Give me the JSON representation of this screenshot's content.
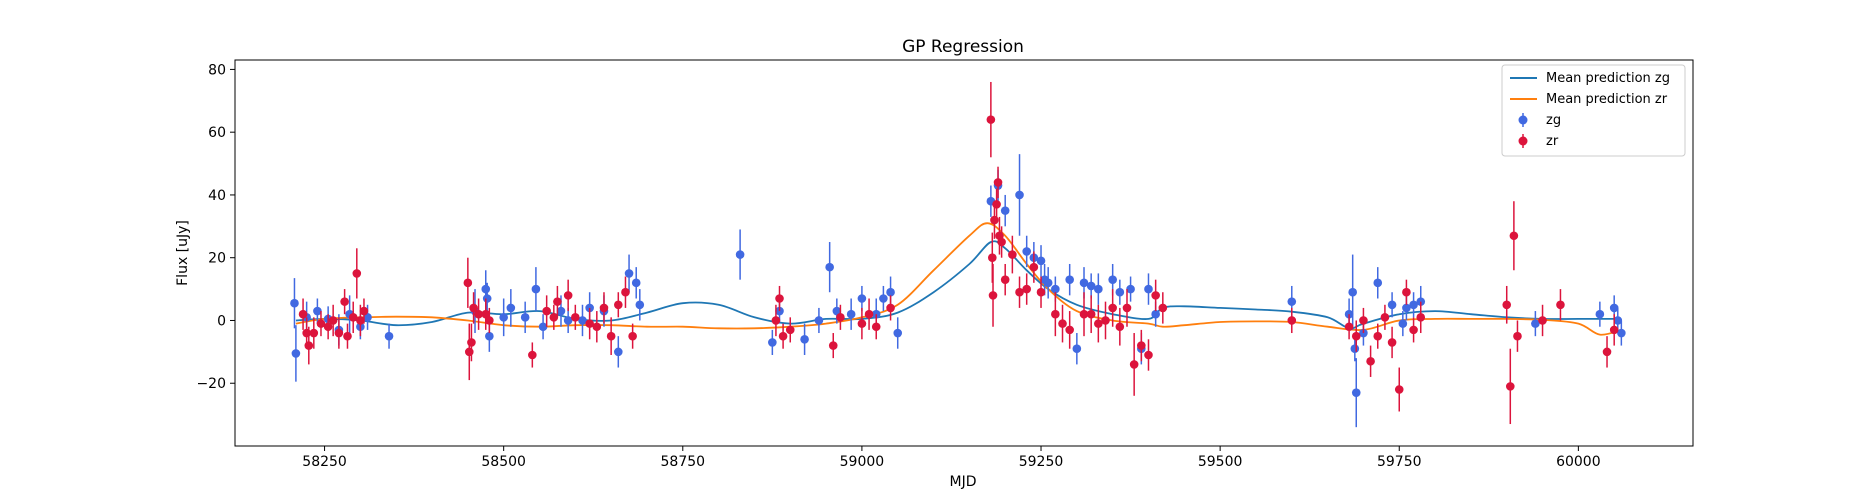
{
  "chart_data": {
    "type": "scatter",
    "title": "GP Regression",
    "xlabel": "MJD",
    "ylabel": "Flux [uJy]",
    "xlim": [
      58125,
      60160
    ],
    "ylim": [
      -40,
      83
    ],
    "xticks": [
      58250,
      58500,
      58750,
      59000,
      59250,
      59500,
      59750,
      60000
    ],
    "yticks": [
      -20,
      0,
      20,
      40,
      60,
      80
    ],
    "grid": false,
    "legend": {
      "placement": "top-right",
      "entries": [
        "Mean prediction zg",
        "Mean prediction zr",
        "zg",
        "zr"
      ]
    },
    "series": [
      {
        "name": "Mean prediction zg",
        "kind": "line",
        "color": "#1f77b4",
        "x": [
          58210,
          58250,
          58300,
          58350,
          58400,
          58450,
          58500,
          58550,
          58600,
          58650,
          58700,
          58750,
          58800,
          58850,
          58900,
          58950,
          59000,
          59050,
          59100,
          59150,
          59180,
          59200,
          59230,
          59260,
          59300,
          59350,
          59400,
          59420,
          59450,
          59500,
          59550,
          59600,
          59650,
          59680,
          59700,
          59750,
          59800,
          59850,
          59900,
          59950,
          60000,
          60040,
          60060
        ],
        "y": [
          0,
          0.5,
          0,
          -1.5,
          -0.5,
          2.5,
          2,
          3,
          0.5,
          0,
          2.5,
          5.5,
          5,
          1,
          -1,
          0.5,
          0.5,
          2.5,
          9,
          18,
          25,
          23,
          16,
          10,
          5,
          2,
          0.5,
          4,
          4.5,
          4,
          3.5,
          2.8,
          1,
          -2.5,
          -1,
          2,
          3,
          2,
          1,
          0.5,
          0.5,
          0.5,
          0.5
        ]
      },
      {
        "name": "Mean prediction zr",
        "kind": "line",
        "color": "#ff7f0e",
        "x": [
          58210,
          58250,
          58300,
          58350,
          58400,
          58450,
          58500,
          58550,
          58600,
          58650,
          58700,
          58750,
          58800,
          58850,
          58900,
          58950,
          59000,
          59050,
          59100,
          59150,
          59175,
          59200,
          59230,
          59260,
          59300,
          59350,
          59400,
          59420,
          59450,
          59500,
          59550,
          59600,
          59650,
          59700,
          59750,
          59800,
          59850,
          59900,
          59950,
          60000,
          60030,
          60060
        ],
        "y": [
          -1,
          0.5,
          1,
          1.2,
          1,
          0,
          -1.5,
          -2,
          -1.5,
          -1.5,
          -2,
          -2,
          -2.5,
          -2.5,
          -2,
          -1,
          1,
          5,
          16,
          27,
          31,
          27,
          18,
          10,
          3,
          0,
          -1,
          -2,
          -1.5,
          -0.5,
          -0.3,
          -0.5,
          -2,
          -3,
          0,
          0.5,
          0.5,
          0.5,
          0.2,
          -1,
          -4.5,
          -3
        ]
      },
      {
        "name": "zg",
        "kind": "errorbar",
        "color": "#4169e1",
        "points": [
          [
            58208,
            5.5,
            8
          ],
          [
            58210,
            -10.5,
            9
          ],
          [
            58225,
            1,
            5
          ],
          [
            58240,
            3,
            4
          ],
          [
            58255,
            0.5,
            4
          ],
          [
            58270,
            -3,
            5
          ],
          [
            58285,
            2,
            6
          ],
          [
            58300,
            -2,
            4
          ],
          [
            58310,
            1,
            4
          ],
          [
            58340,
            -5,
            4
          ],
          [
            58460,
            3,
            7
          ],
          [
            58475,
            10,
            6
          ],
          [
            58477,
            7,
            5
          ],
          [
            58480,
            -5,
            5
          ],
          [
            58500,
            1,
            6
          ],
          [
            58510,
            4,
            6
          ],
          [
            58530,
            1,
            5
          ],
          [
            58545,
            10,
            7
          ],
          [
            58555,
            -2,
            4
          ],
          [
            58580,
            3,
            5
          ],
          [
            58590,
            0,
            4
          ],
          [
            58610,
            0,
            5
          ],
          [
            58620,
            4,
            5
          ],
          [
            58640,
            3,
            5
          ],
          [
            58660,
            -10,
            5
          ],
          [
            58675,
            15,
            6
          ],
          [
            58685,
            12,
            5
          ],
          [
            58690,
            5,
            5
          ],
          [
            58830,
            21,
            8
          ],
          [
            58875,
            -7,
            4
          ],
          [
            58885,
            3,
            4
          ],
          [
            58920,
            -6,
            5
          ],
          [
            58940,
            0,
            4
          ],
          [
            58955,
            17,
            8
          ],
          [
            58965,
            3,
            4
          ],
          [
            58985,
            2,
            5
          ],
          [
            59000,
            7,
            4
          ],
          [
            59020,
            2,
            5
          ],
          [
            59030,
            7,
            4
          ],
          [
            59040,
            9,
            5
          ],
          [
            59050,
            -4,
            5
          ],
          [
            59180,
            38,
            5
          ],
          [
            59190,
            43,
            5
          ],
          [
            59200,
            35,
            5
          ],
          [
            59220,
            40,
            13
          ],
          [
            59230,
            22,
            5
          ],
          [
            59240,
            20,
            5
          ],
          [
            59250,
            19,
            5
          ],
          [
            59255,
            13,
            5
          ],
          [
            59260,
            12,
            5
          ],
          [
            59270,
            10,
            4
          ],
          [
            59290,
            13,
            5
          ],
          [
            59300,
            -9,
            5
          ],
          [
            59310,
            12,
            5
          ],
          [
            59320,
            11,
            4
          ],
          [
            59330,
            10,
            5
          ],
          [
            59350,
            13,
            5
          ],
          [
            59360,
            9,
            4
          ],
          [
            59375,
            10,
            4
          ],
          [
            59390,
            -9,
            5
          ],
          [
            59400,
            10,
            5
          ],
          [
            59410,
            2,
            4
          ],
          [
            59600,
            6,
            5
          ],
          [
            59680,
            2,
            5
          ],
          [
            59685,
            9,
            12
          ],
          [
            59688,
            -9,
            4
          ],
          [
            59690,
            -23,
            11
          ],
          [
            59700,
            -4,
            4
          ],
          [
            59720,
            12,
            5
          ],
          [
            59740,
            5,
            4
          ],
          [
            59755,
            -1,
            4
          ],
          [
            59760,
            4,
            4
          ],
          [
            59770,
            5,
            4
          ],
          [
            59780,
            6,
            5
          ],
          [
            59940,
            -1,
            4
          ],
          [
            60030,
            2,
            4
          ],
          [
            60050,
            4,
            4
          ],
          [
            60055,
            0,
            4
          ],
          [
            60060,
            -4,
            4
          ]
        ]
      },
      {
        "name": "zr",
        "kind": "errorbar",
        "color": "#dc143c",
        "points": [
          [
            58220,
            2,
            5
          ],
          [
            58225,
            -4,
            5
          ],
          [
            58228,
            -8,
            6
          ],
          [
            58235,
            -4,
            5
          ],
          [
            58245,
            -1,
            4
          ],
          [
            58255,
            -2,
            4
          ],
          [
            58262,
            0,
            5
          ],
          [
            58270,
            -4,
            5
          ],
          [
            58278,
            6,
            4
          ],
          [
            58282,
            -5,
            4
          ],
          [
            58290,
            1,
            5
          ],
          [
            58295,
            15,
            8
          ],
          [
            58300,
            0,
            5
          ],
          [
            58305,
            3,
            4
          ],
          [
            58450,
            12,
            8
          ],
          [
            58452,
            -10,
            9
          ],
          [
            58455,
            -7,
            6
          ],
          [
            58458,
            4,
            5
          ],
          [
            58465,
            2,
            5
          ],
          [
            58475,
            2,
            5
          ],
          [
            58480,
            0,
            4
          ],
          [
            58540,
            -11,
            4
          ],
          [
            58560,
            3,
            5
          ],
          [
            58570,
            1,
            4
          ],
          [
            58575,
            6,
            5
          ],
          [
            58590,
            8,
            5
          ],
          [
            58600,
            1,
            4
          ],
          [
            58620,
            -1,
            5
          ],
          [
            58630,
            -2,
            5
          ],
          [
            58640,
            4,
            5
          ],
          [
            58650,
            -5,
            6
          ],
          [
            58660,
            5,
            4
          ],
          [
            58670,
            9,
            5
          ],
          [
            58680,
            -5,
            4
          ],
          [
            58880,
            0,
            5
          ],
          [
            58885,
            7,
            4
          ],
          [
            58890,
            -5,
            4
          ],
          [
            58900,
            -3,
            4
          ],
          [
            58960,
            -8,
            4
          ],
          [
            58970,
            1,
            4
          ],
          [
            59000,
            -1,
            5
          ],
          [
            59010,
            2,
            5
          ],
          [
            59020,
            -2,
            4
          ],
          [
            59040,
            4,
            4
          ],
          [
            59180,
            64,
            12
          ],
          [
            59182,
            20,
            8
          ],
          [
            59183,
            8,
            10
          ],
          [
            59185,
            32,
            6
          ],
          [
            59188,
            37,
            5
          ],
          [
            59190,
            44,
            5
          ],
          [
            59192,
            27,
            6
          ],
          [
            59195,
            25,
            5
          ],
          [
            59200,
            13,
            5
          ],
          [
            59210,
            21,
            6
          ],
          [
            59220,
            9,
            5
          ],
          [
            59230,
            10,
            5
          ],
          [
            59240,
            17,
            5
          ],
          [
            59250,
            9,
            5
          ],
          [
            59270,
            2,
            7
          ],
          [
            59280,
            -1,
            6
          ],
          [
            59290,
            -3,
            6
          ],
          [
            59310,
            2,
            7
          ],
          [
            59320,
            2,
            6
          ],
          [
            59330,
            -1,
            6
          ],
          [
            59340,
            0,
            6
          ],
          [
            59350,
            4,
            6
          ],
          [
            59360,
            -2,
            6
          ],
          [
            59370,
            4,
            6
          ],
          [
            59380,
            -14,
            10
          ],
          [
            59390,
            -8,
            5
          ],
          [
            59400,
            -11,
            5
          ],
          [
            59410,
            8,
            5
          ],
          [
            59420,
            4,
            5
          ],
          [
            59600,
            0,
            4
          ],
          [
            59680,
            -2,
            4
          ],
          [
            59690,
            -5,
            5
          ],
          [
            59700,
            0,
            4
          ],
          [
            59710,
            -13,
            5
          ],
          [
            59720,
            -5,
            4
          ],
          [
            59730,
            1,
            4
          ],
          [
            59740,
            -7,
            5
          ],
          [
            59750,
            -22,
            7
          ],
          [
            59760,
            9,
            4
          ],
          [
            59770,
            -3,
            4
          ],
          [
            59780,
            1,
            5
          ],
          [
            59900,
            5,
            6
          ],
          [
            59905,
            -21,
            12
          ],
          [
            59910,
            27,
            11
          ],
          [
            59915,
            -5,
            5
          ],
          [
            59950,
            0,
            5
          ],
          [
            59975,
            5,
            5
          ],
          [
            60040,
            -10,
            5
          ],
          [
            60050,
            -3,
            5
          ]
        ]
      }
    ]
  }
}
